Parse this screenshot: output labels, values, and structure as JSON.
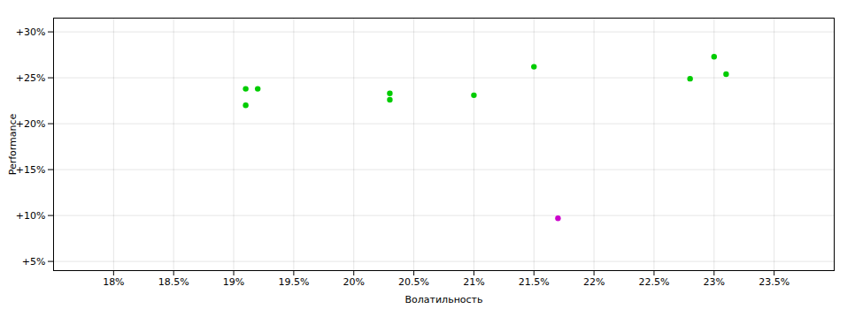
{
  "chart_data": {
    "type": "scatter",
    "xlabel": "Волатильность",
    "ylabel": "Performance",
    "xlim": [
      0.175,
      0.24
    ],
    "ylim": [
      0.04,
      0.315
    ],
    "xticks": [
      {
        "value": 0.18,
        "label": "18%"
      },
      {
        "value": 0.185,
        "label": "18.5%"
      },
      {
        "value": 0.19,
        "label": "19%"
      },
      {
        "value": 0.195,
        "label": "19.5%"
      },
      {
        "value": 0.2,
        "label": "20%"
      },
      {
        "value": 0.205,
        "label": "20.5%"
      },
      {
        "value": 0.21,
        "label": "21%"
      },
      {
        "value": 0.215,
        "label": "21.5%"
      },
      {
        "value": 0.22,
        "label": "22%"
      },
      {
        "value": 0.225,
        "label": "22.5%"
      },
      {
        "value": 0.23,
        "label": "23%"
      },
      {
        "value": 0.235,
        "label": "23.5%"
      }
    ],
    "yticks": [
      {
        "value": 0.05,
        "label": "+5%"
      },
      {
        "value": 0.1,
        "label": "+10%"
      },
      {
        "value": 0.15,
        "label": "+15%"
      },
      {
        "value": 0.2,
        "label": "+20%"
      },
      {
        "value": 0.25,
        "label": "+25%"
      },
      {
        "value": 0.3,
        "label": "+30%"
      }
    ],
    "grid": true,
    "series": [
      {
        "color": "#00cc00",
        "x": [
          0.191,
          0.192,
          0.191,
          0.203,
          0.203,
          0.21,
          0.215,
          0.228,
          0.23,
          0.231
        ],
        "values": [
          0.238,
          0.238,
          0.22,
          0.233,
          0.226,
          0.231,
          0.262,
          0.249,
          0.273,
          0.254
        ]
      },
      {
        "color": "#cc00cc",
        "x": [
          0.217
        ],
        "values": [
          0.097
        ]
      }
    ]
  }
}
